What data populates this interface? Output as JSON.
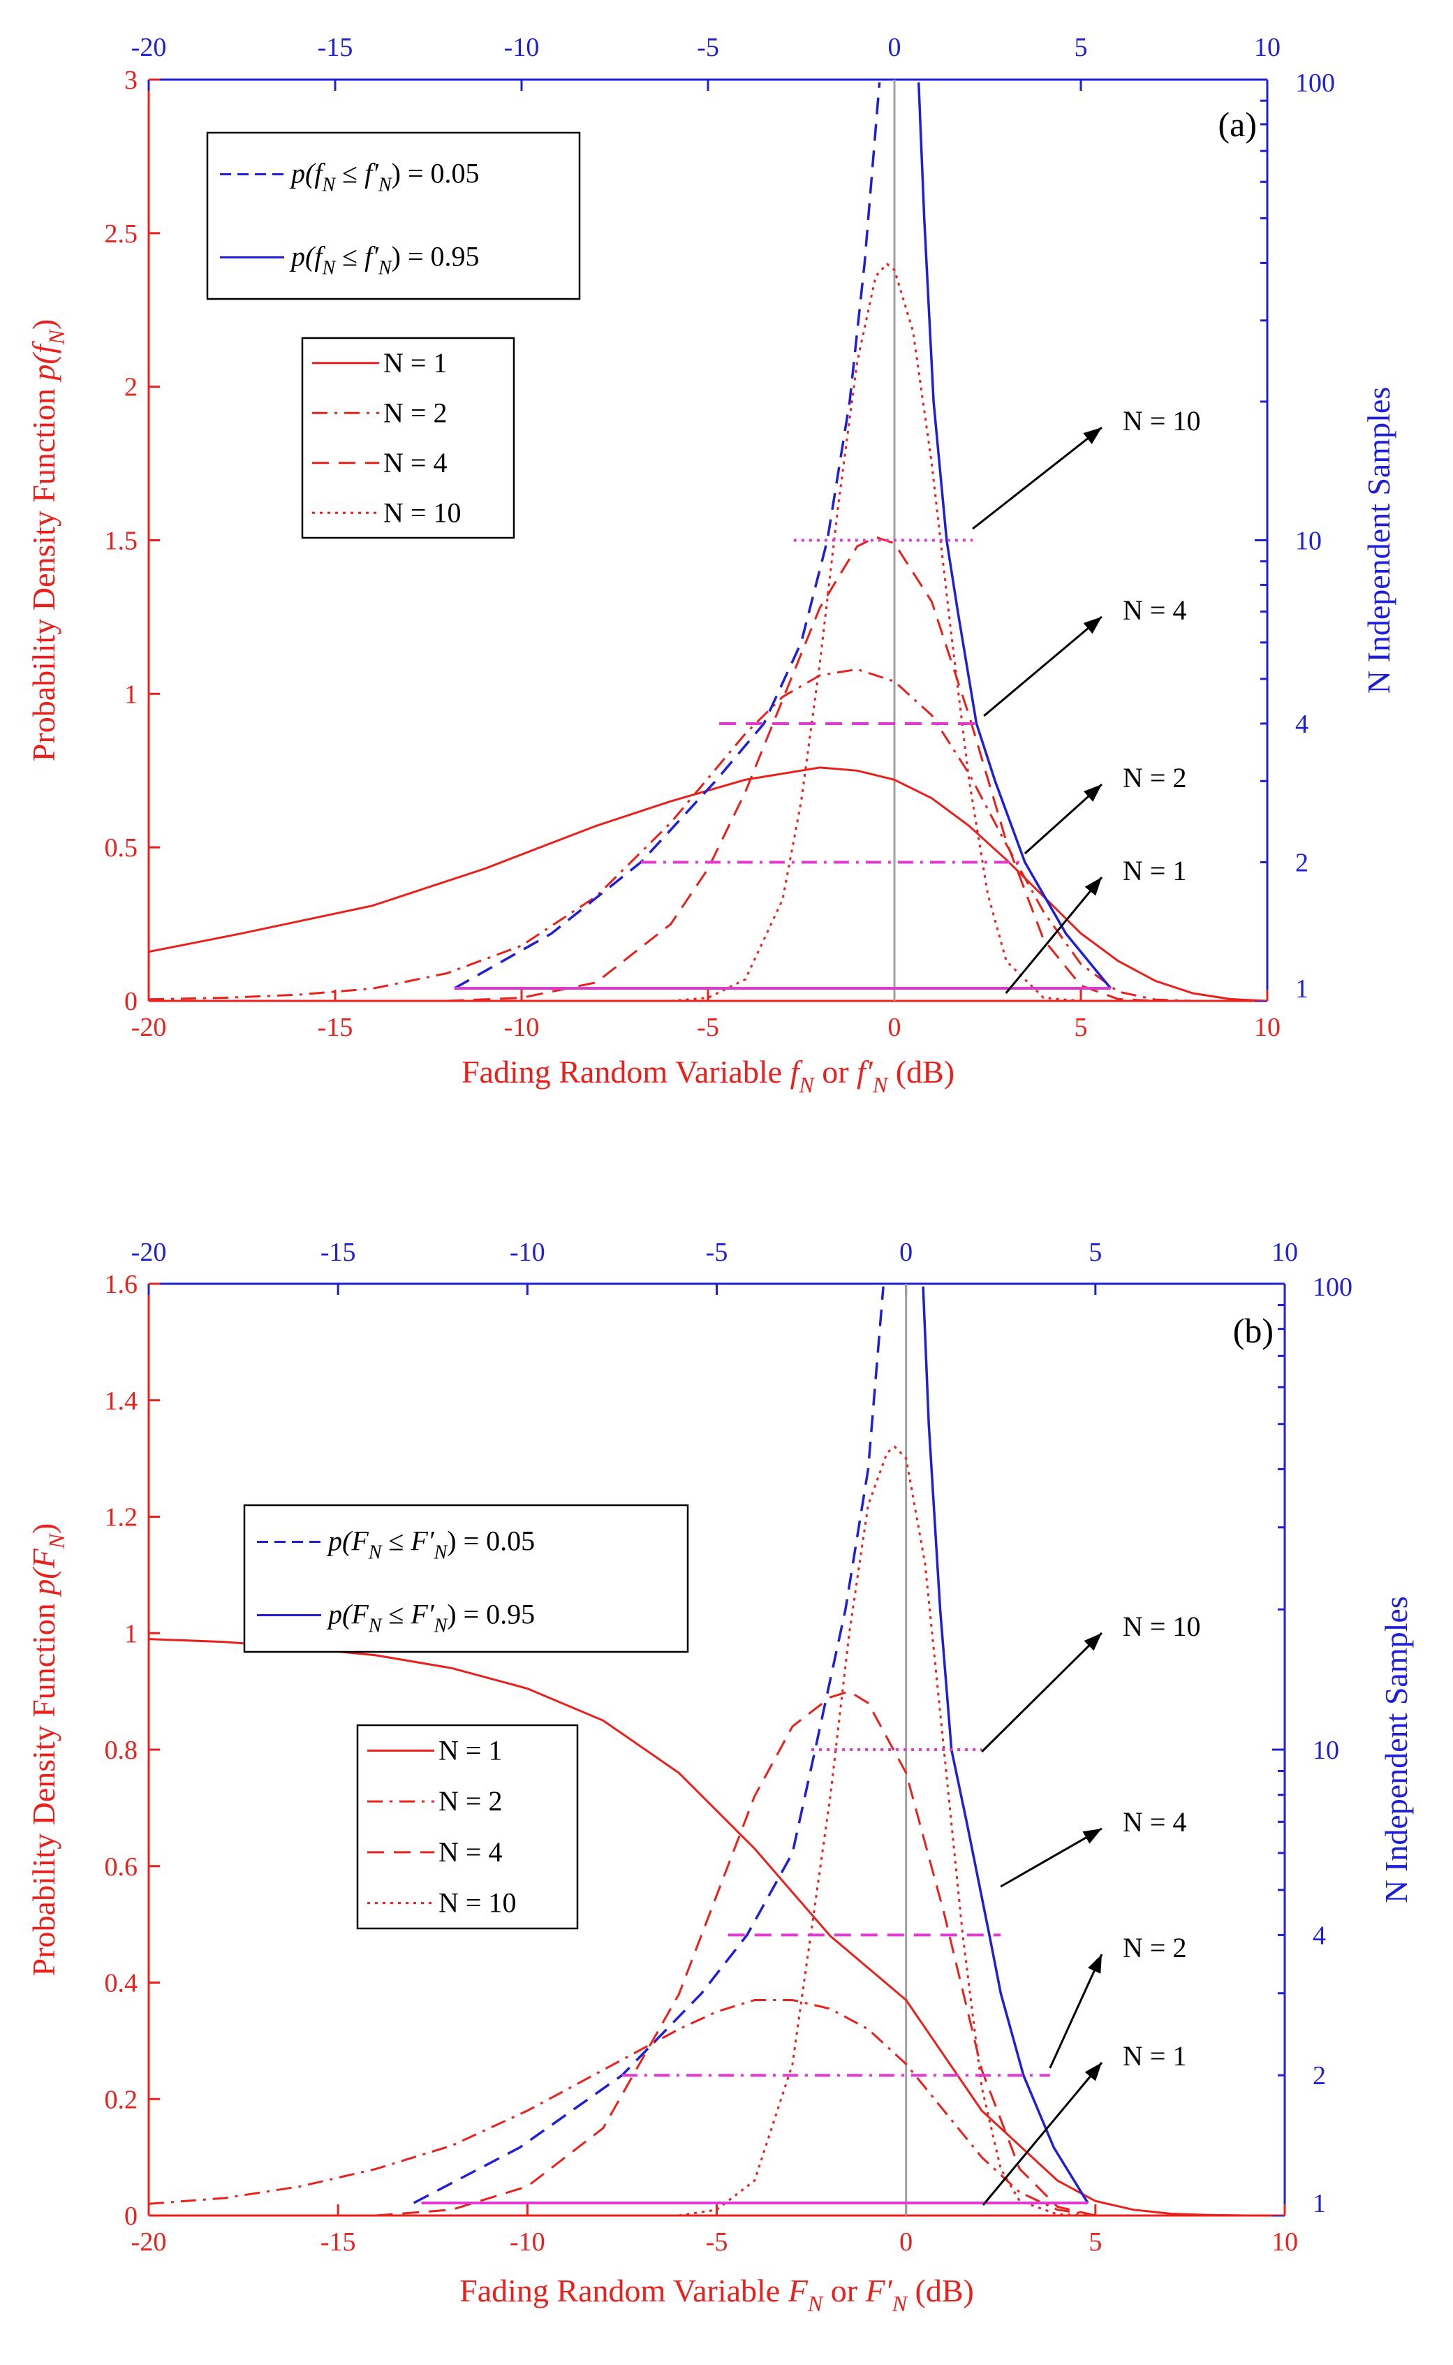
{
  "colors": {
    "red": "#e8211d",
    "blue": "#1f1fd6",
    "magenta": "#e23ad0",
    "gray": "#a0a0a0",
    "black": "#000000"
  },
  "chart_data": [
    {
      "type": "line",
      "panel_label": "(a)",
      "xlabel_main": "Fading Random Variable ",
      "xlabel_sym1": "f",
      "xlabel_or": " or ",
      "xlabel_sym2": "f′",
      "xlabel_units": " (dB)",
      "xlabel_sub": "N",
      "ylabel_left_main": "Probability Density Function ",
      "ylabel_left_sym": "p(f",
      "ylabel_left_sub": "N",
      "ylabel_left_end": ")",
      "ylabel_right": "N Independent Samples",
      "xlim": [
        -20,
        10
      ],
      "xticks": [
        "-20",
        "-15",
        "-10",
        "-5",
        "0",
        "5",
        "10"
      ],
      "xticks_top": [
        "-20",
        "-15",
        "-10",
        "-5",
        "0",
        "5",
        "10"
      ],
      "ylim_left": [
        0,
        3
      ],
      "yticks_left": [
        "0",
        "0.5",
        "1",
        "1.5",
        "2",
        "2.5",
        "3"
      ],
      "ylim_right": [
        1,
        100
      ],
      "yticks_right": [
        "1",
        "2",
        "4",
        "10",
        "100"
      ],
      "legend_ci": [
        "p(fN ≤ f′N) = 0.05",
        "p(fN ≤ f′N) = 0.95"
      ],
      "legend_ci_parts": [
        {
          "pre": "p(",
          "s1": "f",
          "sub1": "N",
          "mid": " ≤ ",
          "s2": "f′",
          "sub2": "N",
          "post": ") = 0.05"
        },
        {
          "pre": "p(",
          "s1": "f",
          "sub1": "N",
          "mid": " ≤ ",
          "s2": "f′",
          "sub2": "N",
          "post": ") = 0.95"
        }
      ],
      "legend_n": [
        "N = 1",
        "N = 2",
        "N = 4",
        "N = 10"
      ],
      "annotations": [
        "N = 10",
        "N = 4",
        "N = 2",
        "N = 1"
      ],
      "series": [
        {
          "name": "N = 1",
          "style": "solid",
          "x": [
            -20,
            -17.5,
            -14,
            -11,
            -8,
            -6,
            -4,
            -2,
            -1,
            0,
            1,
            2,
            3,
            4,
            5,
            6,
            7,
            8,
            9,
            10
          ],
          "values": [
            0.16,
            0.22,
            0.31,
            0.43,
            0.57,
            0.65,
            0.72,
            0.76,
            0.75,
            0.72,
            0.66,
            0.57,
            0.46,
            0.34,
            0.22,
            0.13,
            0.065,
            0.025,
            0.006,
            0.0
          ]
        },
        {
          "name": "N = 2",
          "style": "dashdot",
          "x": [
            -20,
            -18,
            -16,
            -14,
            -12,
            -10,
            -8,
            -6,
            -4,
            -3,
            -2,
            -1,
            0,
            1,
            2,
            3,
            4,
            5,
            6,
            7,
            8
          ],
          "values": [
            0.005,
            0.01,
            0.02,
            0.04,
            0.09,
            0.18,
            0.34,
            0.58,
            0.87,
            0.99,
            1.06,
            1.08,
            1.04,
            0.93,
            0.74,
            0.51,
            0.29,
            0.12,
            0.03,
            0.004,
            0.0
          ]
        },
        {
          "name": "N = 4",
          "style": "dash",
          "x": [
            -12,
            -10,
            -8,
            -6,
            -5,
            -4,
            -3,
            -2,
            -1,
            -0.5,
            0,
            1,
            2,
            3,
            4,
            5,
            6,
            7
          ],
          "values": [
            0.0,
            0.01,
            0.06,
            0.25,
            0.43,
            0.68,
            0.98,
            1.28,
            1.48,
            1.51,
            1.49,
            1.3,
            0.93,
            0.52,
            0.2,
            0.05,
            0.006,
            0.0
          ]
        },
        {
          "name": "N = 10",
          "style": "dot",
          "x": [
            -6,
            -5,
            -4,
            -3,
            -2.5,
            -2,
            -1.5,
            -1,
            -0.5,
            -0.2,
            0,
            0.5,
            1,
            1.5,
            2,
            2.5,
            3,
            4,
            5
          ],
          "values": [
            0.0,
            0.01,
            0.07,
            0.33,
            0.65,
            1.1,
            1.62,
            2.08,
            2.36,
            2.4,
            2.38,
            2.18,
            1.75,
            1.22,
            0.72,
            0.35,
            0.13,
            0.01,
            0.0
          ]
        }
      ],
      "ci_curves": [
        {
          "name": "p = 0.05",
          "style": "dash",
          "points": [
            [
              -11.8,
              1
            ],
            [
              -9.2,
              1.4
            ],
            [
              -6.8,
              2
            ],
            [
              -4.8,
              3
            ],
            [
              -3.5,
              4
            ],
            [
              -2.5,
              6
            ],
            [
              -1.8,
              10
            ],
            [
              -1.2,
              20
            ],
            [
              -0.8,
              40
            ],
            [
              -0.4,
              100
            ]
          ]
        },
        {
          "name": "p = 0.95",
          "style": "solid",
          "points": [
            [
              5.8,
              1
            ],
            [
              4.6,
              1.4
            ],
            [
              3.5,
              2
            ],
            [
              2.7,
              3
            ],
            [
              2.2,
              4
            ],
            [
              1.7,
              7
            ],
            [
              1.4,
              10
            ],
            [
              1.05,
              20
            ],
            [
              0.8,
              50
            ],
            [
              0.65,
              100
            ]
          ]
        }
      ],
      "bars": [
        {
          "n": 1,
          "style": "solid",
          "x1": -11.8,
          "x2": 5.8
        },
        {
          "n": 2,
          "style": "dashdot",
          "x1": -6.8,
          "x2": 3.5
        },
        {
          "n": 4,
          "style": "dash",
          "x1": -4.7,
          "x2": 2.4
        },
        {
          "n": 10,
          "style": "dot",
          "x1": -2.7,
          "x2": 2.1
        }
      ]
    },
    {
      "type": "line",
      "panel_label": "(b)",
      "xlabel_main": "Fading Random Variable ",
      "xlabel_sym1": "F",
      "xlabel_or": " or ",
      "xlabel_sym2": "F′",
      "xlabel_units": " (dB)",
      "xlabel_sub": "N",
      "ylabel_left_main": "Probability Density Function ",
      "ylabel_left_sym": "p(F",
      "ylabel_left_sub": "N",
      "ylabel_left_end": ")",
      "ylabel_right": "N Independent Samples",
      "xlim": [
        -20,
        10
      ],
      "xticks": [
        "-20",
        "-15",
        "-10",
        "-5",
        "0",
        "5",
        "10"
      ],
      "xticks_top": [
        "-20",
        "-15",
        "-10",
        "-5",
        "0",
        "5",
        "10"
      ],
      "ylim_left": [
        0,
        1.6
      ],
      "yticks_left": [
        "0",
        "0.2",
        "0.4",
        "0.6",
        "0.8",
        "1",
        "1.2",
        "1.4",
        "1.6"
      ],
      "ylim_right": [
        1,
        100
      ],
      "yticks_right": [
        "1",
        "2",
        "4",
        "10",
        "100"
      ],
      "legend_ci": [
        "p(FN ≤ F′N) = 0.05",
        "p(FN ≤ F′N) = 0.95"
      ],
      "legend_ci_parts": [
        {
          "pre": "p(",
          "s1": "F",
          "sub1": "N",
          "mid": " ≤ ",
          "s2": "F′",
          "sub2": "N",
          "post": ") = 0.05"
        },
        {
          "pre": "p(",
          "s1": "F",
          "sub1": "N",
          "mid": " ≤ ",
          "s2": "F′",
          "sub2": "N",
          "post": ") = 0.95"
        }
      ],
      "legend_n": [
        "N = 1",
        "N = 2",
        "N = 4",
        "N = 10"
      ],
      "annotations": [
        "N = 10",
        "N = 4",
        "N = 2",
        "N = 1"
      ],
      "series": [
        {
          "name": "N = 1",
          "style": "solid",
          "x": [
            -20,
            -18,
            -16,
            -14,
            -12,
            -10,
            -8,
            -6,
            -4,
            -2,
            0,
            2,
            4,
            5,
            6,
            7,
            8,
            9,
            10
          ],
          "values": [
            0.99,
            0.985,
            0.975,
            0.962,
            0.94,
            0.905,
            0.85,
            0.76,
            0.63,
            0.48,
            0.37,
            0.18,
            0.06,
            0.025,
            0.01,
            0.003,
            0.001,
            0.0,
            0.0
          ]
        },
        {
          "name": "N = 2",
          "style": "dashdot",
          "x": [
            -20,
            -18,
            -16,
            -14,
            -12,
            -10,
            -8,
            -6,
            -5,
            -4,
            -3,
            -2,
            -1,
            0,
            1,
            2,
            3,
            4,
            5
          ],
          "values": [
            0.02,
            0.03,
            0.05,
            0.08,
            0.12,
            0.18,
            0.25,
            0.32,
            0.35,
            0.37,
            0.37,
            0.355,
            0.32,
            0.26,
            0.18,
            0.1,
            0.04,
            0.01,
            0.0
          ]
        },
        {
          "name": "N = 4",
          "style": "dash",
          "x": [
            -14,
            -12,
            -10,
            -8,
            -6,
            -5,
            -4,
            -3,
            -2,
            -1.5,
            -1,
            0,
            1,
            2,
            3,
            4,
            5
          ],
          "values": [
            0.0,
            0.01,
            0.05,
            0.15,
            0.38,
            0.55,
            0.72,
            0.84,
            0.89,
            0.9,
            0.88,
            0.76,
            0.52,
            0.25,
            0.08,
            0.015,
            0.0
          ]
        },
        {
          "name": "N = 10",
          "style": "dot",
          "x": [
            -6,
            -5,
            -4,
            -3,
            -2,
            -1.5,
            -1,
            -0.5,
            -0.3,
            0,
            0.5,
            1,
            1.5,
            2,
            2.5,
            3,
            4,
            5
          ],
          "values": [
            0.0,
            0.01,
            0.06,
            0.26,
            0.72,
            1.0,
            1.22,
            1.31,
            1.32,
            1.3,
            1.12,
            0.8,
            0.48,
            0.22,
            0.08,
            0.025,
            0.002,
            0.0
          ]
        }
      ],
      "ci_curves": [
        {
          "name": "p = 0.05",
          "style": "dash",
          "points": [
            [
              -13,
              1
            ],
            [
              -10.2,
              1.4
            ],
            [
              -7.5,
              2
            ],
            [
              -5.4,
              3
            ],
            [
              -4.2,
              4
            ],
            [
              -3.0,
              6
            ],
            [
              -2.4,
              10
            ],
            [
              -1.6,
              20
            ],
            [
              -1.0,
              40
            ],
            [
              -0.6,
              100
            ]
          ]
        },
        {
          "name": "p = 0.95",
          "style": "solid",
          "points": [
            [
              4.8,
              1
            ],
            [
              3.9,
              1.4
            ],
            [
              3.1,
              2
            ],
            [
              2.5,
              3
            ],
            [
              2.2,
              4
            ],
            [
              1.6,
              7
            ],
            [
              1.2,
              10
            ],
            [
              0.9,
              20
            ],
            [
              0.6,
              50
            ],
            [
              0.45,
              100
            ]
          ]
        }
      ],
      "bars": [
        {
          "n": 1,
          "style": "solid",
          "x1": -12.8,
          "x2": 4.8
        },
        {
          "n": 2,
          "style": "dashdot",
          "x1": -7.5,
          "x2": 3.8
        },
        {
          "n": 4,
          "style": "dash",
          "x1": -4.7,
          "x2": 2.5
        },
        {
          "n": 10,
          "style": "dot",
          "x1": -2.5,
          "x2": 2.0
        }
      ]
    }
  ]
}
